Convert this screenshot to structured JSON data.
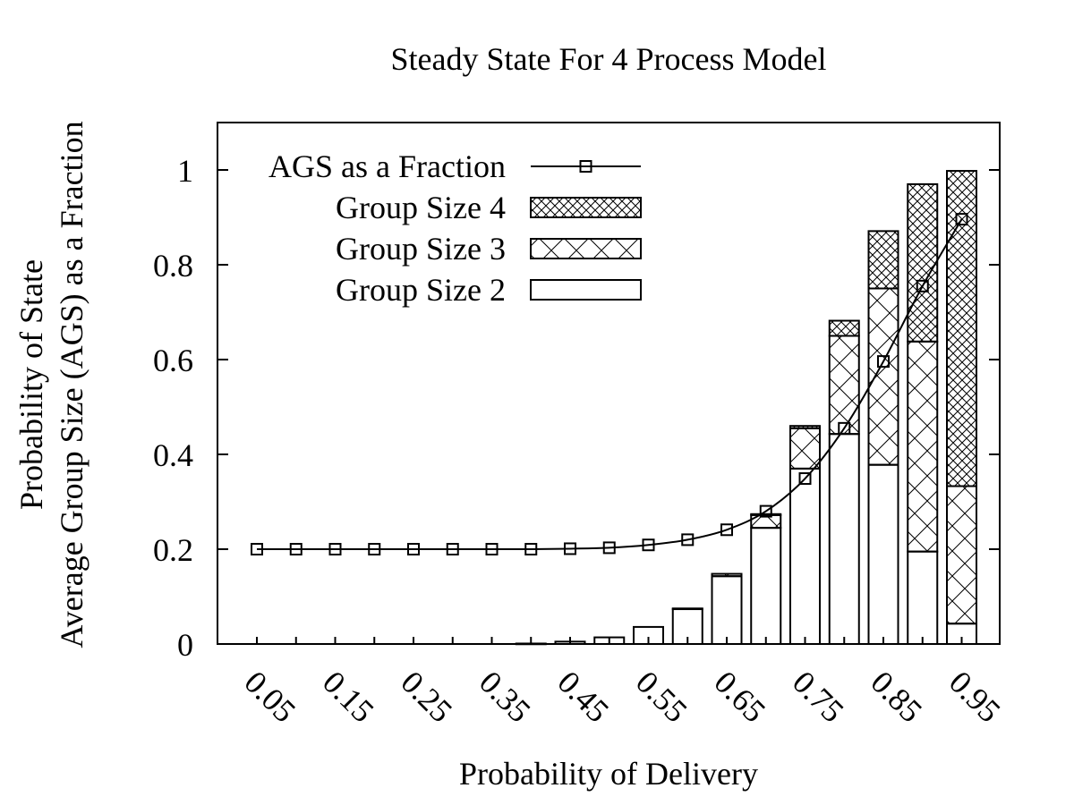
{
  "chart_data": {
    "type": "bar",
    "title": "Steady State For 4 Process Model",
    "xlabel": "Probability of Delivery",
    "ylabel_line1": "Probability of State",
    "ylabel_line2": "Average Group Size (AGS) as a Fraction",
    "ylim": [
      0,
      1.1
    ],
    "yticks": [
      "0",
      "0.2",
      "0.4",
      "0.6",
      "0.8",
      "1"
    ],
    "grid": false,
    "legend_position": "top-left",
    "categories": [
      "0.05",
      "0.1",
      "0.15",
      "0.2",
      "0.25",
      "0.3",
      "0.35",
      "0.4",
      "0.45",
      "0.5",
      "0.55",
      "0.6",
      "0.65",
      "0.7",
      "0.75",
      "0.8",
      "0.85",
      "0.9",
      "0.95"
    ],
    "x_tick_labels": [
      "0.05",
      "0.15",
      "0.25",
      "0.35",
      "0.45",
      "0.55",
      "0.65",
      "0.75",
      "0.85",
      "0.95"
    ],
    "stacked_series": [
      {
        "name": "Group Size 2",
        "pattern": "none",
        "values": [
          0,
          0,
          0,
          0,
          0,
          0,
          0,
          0.001,
          0.005,
          0.014,
          0.036,
          0.074,
          0.143,
          0.245,
          0.37,
          0.443,
          0.378,
          0.195,
          0.043
        ]
      },
      {
        "name": "Group Size 3",
        "pattern": "cross",
        "values": [
          0,
          0,
          0,
          0,
          0,
          0,
          0,
          0,
          0,
          0,
          0,
          0.001,
          0.005,
          0.027,
          0.085,
          0.207,
          0.372,
          0.443,
          0.29
        ]
      },
      {
        "name": "Group Size 4",
        "pattern": "dense-cross",
        "values": [
          0,
          0,
          0,
          0,
          0,
          0,
          0,
          0,
          0,
          0,
          0,
          0,
          0,
          0.002,
          0.005,
          0.032,
          0.121,
          0.332,
          0.665
        ]
      }
    ],
    "line_series": {
      "name": "AGS as a Fraction",
      "marker": "square",
      "values": [
        0.2,
        0.2,
        0.2,
        0.2,
        0.2,
        0.2,
        0.2,
        0.2,
        0.201,
        0.203,
        0.209,
        0.22,
        0.241,
        0.28,
        0.349,
        0.455,
        0.596,
        0.755,
        0.896
      ]
    },
    "legend": [
      "AGS as a Fraction",
      "Group Size 4",
      "Group Size 3",
      "Group Size 2"
    ],
    "colors": {
      "axis": "#000000",
      "bar_fill": "#ffffff",
      "line": "#000000"
    }
  }
}
